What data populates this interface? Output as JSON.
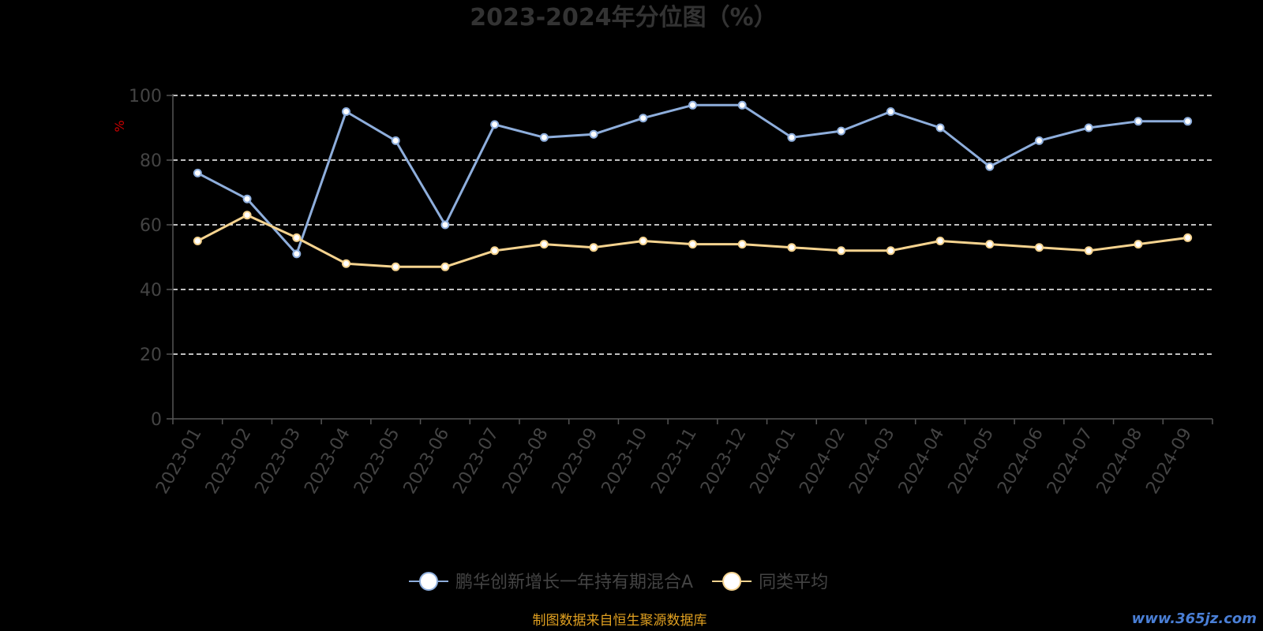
{
  "chart_data": {
    "type": "line",
    "title": "2023-2024年分位图（%）",
    "ylabel": "%",
    "ylim": [
      0,
      100
    ],
    "yticks": [
      0,
      20,
      40,
      60,
      80,
      100
    ],
    "grid": true,
    "legend_position": "bottom",
    "categories": [
      "2023-01",
      "2023-02",
      "2023-03",
      "2023-04",
      "2023-05",
      "2023-06",
      "2023-07",
      "2023-08",
      "2023-09",
      "2023-10",
      "2023-11",
      "2023-12",
      "2024-01",
      "2024-02",
      "2024-03",
      "2024-04",
      "2024-05",
      "2024-06",
      "2024-07",
      "2024-08",
      "2024-09"
    ],
    "series": [
      {
        "name": "鹏华创新增长一年持有期混合A",
        "color": "#8eaedc",
        "values": [
          76,
          68,
          51,
          95,
          86,
          60,
          91,
          87,
          88,
          93,
          97,
          97,
          87,
          89,
          95,
          90,
          78,
          86,
          90,
          92,
          92
        ]
      },
      {
        "name": "同类平均",
        "color": "#f5d38f",
        "values": [
          55,
          63,
          56,
          48,
          47,
          47,
          52,
          54,
          53,
          55,
          54,
          54,
          53,
          52,
          52,
          55,
          54,
          53,
          52,
          54,
          56
        ]
      }
    ]
  },
  "footer": {
    "source": "制图数据来自恒生聚源数据库",
    "watermark": "www.365jz.com"
  }
}
